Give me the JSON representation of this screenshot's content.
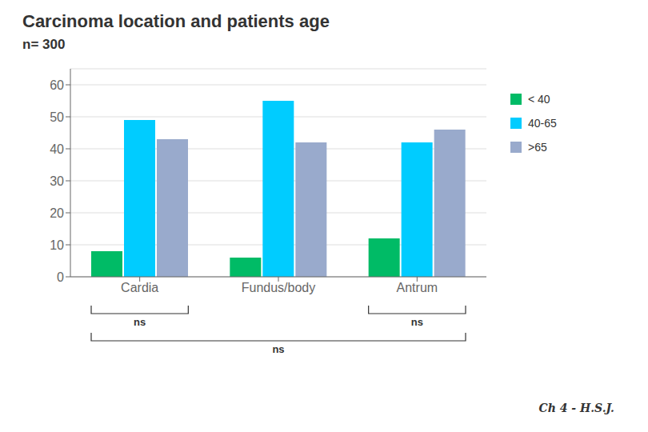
{
  "chart_data": {
    "type": "bar",
    "title": "Carcinoma location and patients age",
    "subtitle": "n= 300",
    "categories": [
      "Cardia",
      "Fundus/body",
      "Antrum"
    ],
    "series": [
      {
        "name": "< 40",
        "color": "#00BB66",
        "values": [
          8,
          6,
          12
        ]
      },
      {
        "name": "40-65",
        "color": "#00CCFF",
        "values": [
          49,
          55,
          42
        ]
      },
      {
        "name": ">65",
        "color": "#99AACC",
        "values": [
          43,
          42,
          46
        ]
      }
    ],
    "ylim": [
      0,
      65
    ],
    "yticks": [
      0,
      10,
      20,
      30,
      40,
      50,
      60
    ],
    "grid": true,
    "legend": "right",
    "annotations": [
      {
        "text": "ns",
        "categories": [
          "Cardia"
        ]
      },
      {
        "text": "ns",
        "categories": [
          "Antrum"
        ]
      },
      {
        "text": "ns",
        "categories": [
          "Cardia",
          "Antrum"
        ]
      },
      {
        "text": "Ch 4 - H.S.J."
      }
    ]
  }
}
